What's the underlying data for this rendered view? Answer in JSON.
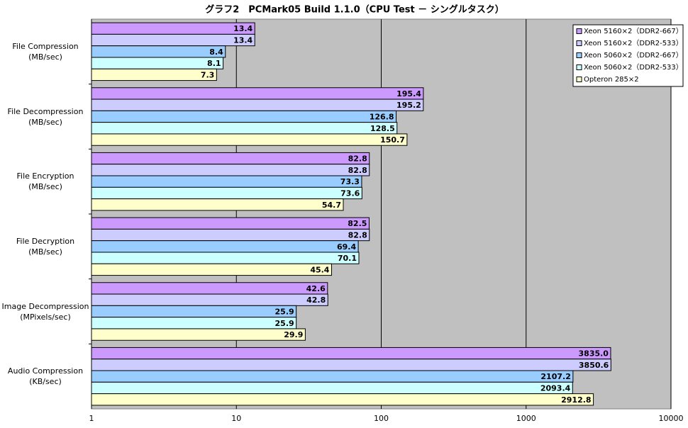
{
  "chart_data": {
    "type": "bar",
    "orientation": "horizontal",
    "title": "グラフ2　PCMark05  Build 1.1.0（CPU Test － シングルタスク）",
    "categories": [
      "File Compression\n(MB/sec)",
      "File Decompression\n(MB/sec)",
      "File Encryption\n(MB/sec)",
      "File Decryption\n(MB/sec)",
      "Image Decompression\n(MPixels/sec)",
      "Audio Compression\n(KB/sec)"
    ],
    "series": [
      {
        "name": "Xeon 5160×2（DDR2-667）",
        "color": "#cc99ff",
        "values": [
          13.4,
          195.4,
          82.8,
          82.5,
          42.6,
          3835.0
        ],
        "value_labels": [
          "13.4",
          "195.4",
          "82.8",
          "82.5",
          "42.6",
          "3835.0"
        ]
      },
      {
        "name": "Xeon 5160×2（DDR2-533）",
        "color": "#ccccff",
        "values": [
          13.4,
          195.2,
          82.8,
          82.8,
          42.8,
          3850.6
        ],
        "value_labels": [
          "13.4",
          "195.2",
          "82.8",
          "82.8",
          "42.8",
          "3850.6"
        ]
      },
      {
        "name": "Xeon 5060×2（DDR2-667）",
        "color": "#99ccff",
        "values": [
          8.4,
          126.8,
          73.3,
          69.4,
          25.9,
          2107.2
        ],
        "value_labels": [
          "8.4",
          "126.8",
          "73.3",
          "69.4",
          "25.9",
          "2107.2"
        ]
      },
      {
        "name": "Xeon 5060×2（DDR2-533）",
        "color": "#ccffff",
        "values": [
          8.1,
          128.5,
          73.6,
          70.1,
          25.9,
          2093.4
        ],
        "value_labels": [
          "8.1",
          "128.5",
          "73.6",
          "70.1",
          "25.9",
          "2093.4"
        ]
      },
      {
        "name": "Opteron 285×2",
        "color": "#ffffcc",
        "values": [
          7.3,
          150.7,
          54.7,
          45.4,
          29.9,
          2912.8
        ],
        "value_labels": [
          "7.3",
          "150.7",
          "54.7",
          "45.4",
          "29.9",
          "2912.8"
        ]
      }
    ],
    "xlim": [
      1,
      10000
    ],
    "xticks": [
      1,
      10,
      100,
      1000,
      10000
    ],
    "log_scale": true,
    "grid": true,
    "legend": "top-right"
  }
}
